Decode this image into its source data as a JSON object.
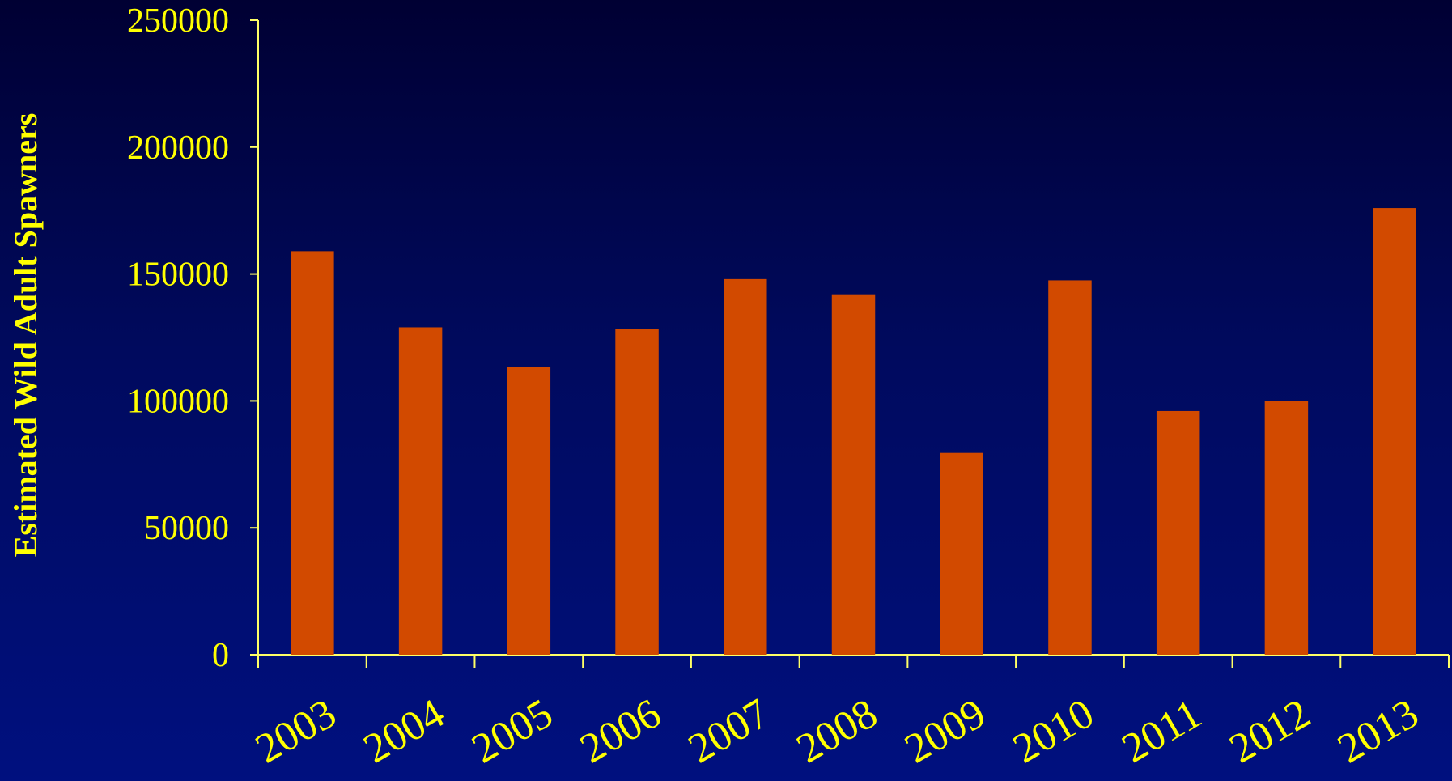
{
  "chart_data": {
    "type": "bar",
    "title": "",
    "xlabel": "",
    "ylabel": "Estimated Wild Adult Spawners",
    "categories": [
      "2003",
      "2004",
      "2005",
      "2006",
      "2007",
      "2008",
      "2009",
      "2010",
      "2011",
      "2012",
      "2013"
    ],
    "values": [
      159000,
      129000,
      113500,
      128500,
      148000,
      142000,
      79500,
      147500,
      96000,
      100000,
      176000
    ],
    "ylim": [
      0,
      250000
    ],
    "yticks": [
      "0",
      "50000",
      "100000",
      "150000",
      "200000",
      "250000"
    ],
    "grid": false,
    "legend": "none",
    "colors": {
      "bar": "#d24a00",
      "axis": "#ffff66",
      "text": "#ffff00",
      "background_top": "#000033",
      "background_bottom": "#00107f"
    }
  }
}
